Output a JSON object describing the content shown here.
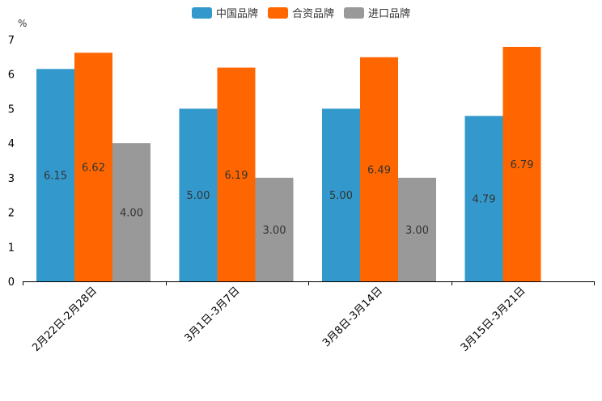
{
  "chart_data": {
    "type": "bar",
    "title": "",
    "ylabel": "%",
    "xlabel": "",
    "ylim": [
      0,
      7
    ],
    "yticks": [
      0,
      1,
      2,
      3,
      4,
      5,
      6,
      7
    ],
    "legend_position": "top-center",
    "categories": [
      "2月22日-2月28日",
      "3月1日-3月7日",
      "3月8日-3月14日",
      "3月15日-3月21日"
    ],
    "series": [
      {
        "name": "中国品牌",
        "color": "#3399cc",
        "values": [
          6.15,
          5.0,
          5.0,
          4.79
        ],
        "labels": [
          "6.15",
          "5.00",
          "5.00",
          "4.79"
        ]
      },
      {
        "name": "合资品牌",
        "color": "#ff6600",
        "values": [
          6.62,
          6.19,
          6.49,
          6.79
        ],
        "labels": [
          "6.62",
          "6.19",
          "6.49",
          "6.79"
        ]
      },
      {
        "name": "进口品牌",
        "color": "#999999",
        "values": [
          4.0,
          3.0,
          3.0,
          null
        ],
        "labels": [
          "4.00",
          "3.00",
          "3.00",
          null
        ]
      }
    ]
  }
}
